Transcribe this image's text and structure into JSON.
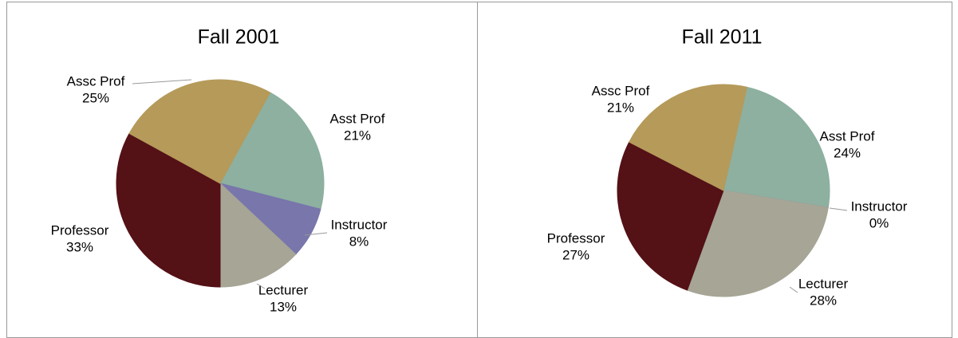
{
  "chart_data": [
    {
      "type": "pie",
      "title": "Fall 2001",
      "categories": [
        "Asst Prof",
        "Instructor",
        "Lecturer",
        "Professor",
        "Assc Prof"
      ],
      "values": [
        21,
        8,
        13,
        33,
        25
      ],
      "value_labels": [
        "21%",
        "8%",
        "13%",
        "33%",
        "25%"
      ],
      "colors": [
        "#8db0a0",
        "#7876ab",
        "#a6a596",
        "#541116",
        "#b59a5a"
      ]
    },
    {
      "type": "pie",
      "title": "Fall 2011",
      "categories": [
        "Asst Prof",
        "Instructor",
        "Lecturer",
        "Professor",
        "Assc Prof"
      ],
      "values": [
        24,
        0,
        28,
        27,
        21
      ],
      "value_labels": [
        "24%",
        "0%",
        "28%",
        "27%",
        "21%"
      ],
      "colors": [
        "#8db0a0",
        "#7876ab",
        "#a6a596",
        "#541116",
        "#b59a5a"
      ]
    }
  ]
}
